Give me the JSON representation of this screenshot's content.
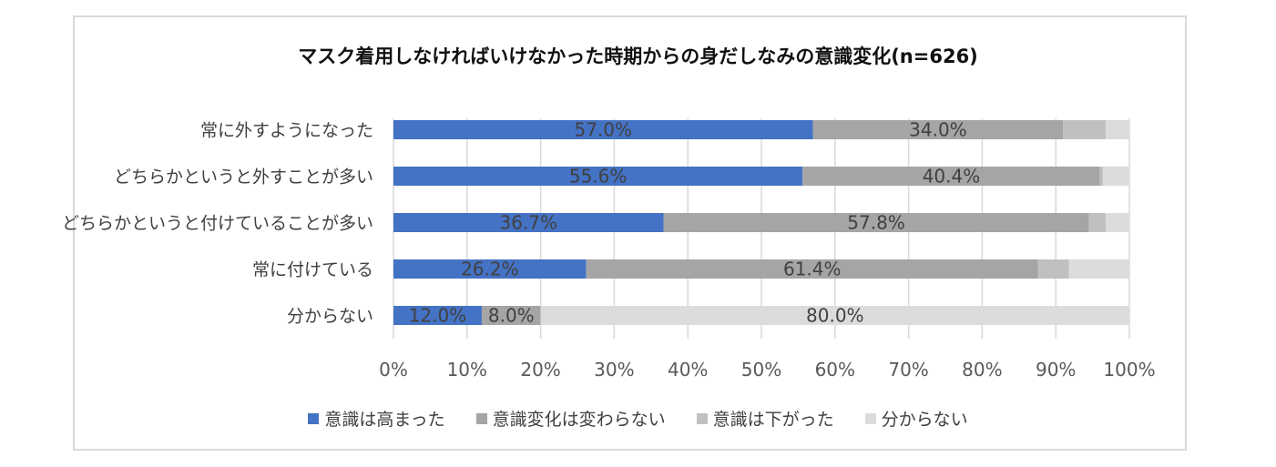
{
  "chart_data": {
    "type": "bar",
    "orientation": "horizontal-stacked-100",
    "title": "マスク着用しなければいけなかった時期からの身だしなみの意識変化(n=626)",
    "categories": [
      "常に外すようになった",
      "どちらかというと外すことが多い",
      "どちらかというと付けていることが多い",
      "常に付けている",
      "分からない"
    ],
    "series": [
      {
        "name": "意識は高まった",
        "color": "#4472c4",
        "values": [
          57.0,
          55.6,
          36.7,
          26.2,
          12.0
        ]
      },
      {
        "name": "意識変化は変わらない",
        "color": "#a5a5a5",
        "values": [
          34.0,
          40.4,
          57.8,
          61.4,
          8.0
        ]
      },
      {
        "name": "意識は下がった",
        "color": "#c0c0c0",
        "values": [
          5.8,
          0.4,
          2.3,
          4.2,
          0.0
        ]
      },
      {
        "name": "分からない",
        "color": "#dcdcdc",
        "values": [
          3.2,
          3.6,
          3.2,
          8.2,
          80.0
        ]
      }
    ],
    "labeled_series": [
      0,
      1,
      3
    ],
    "label_rule": "series 0 and 1 always labeled; series 3 labeled only for 分からない row",
    "data_labels": [
      [
        "57.0%",
        "34.0%",
        null,
        null
      ],
      [
        "55.6%",
        "40.4%",
        null,
        null
      ],
      [
        "36.7%",
        "57.8%",
        null,
        null
      ],
      [
        "26.2%",
        "61.4%",
        null,
        null
      ],
      [
        "12.0%",
        "8.0%",
        null,
        "80.0%"
      ]
    ],
    "x_ticks": [
      "0%",
      "10%",
      "20%",
      "30%",
      "40%",
      "50%",
      "60%",
      "70%",
      "80%",
      "90%",
      "100%"
    ],
    "xlim": [
      0,
      100
    ],
    "grid": true,
    "legend_position": "bottom"
  }
}
